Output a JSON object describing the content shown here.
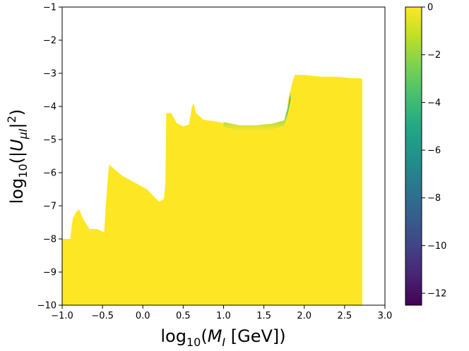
{
  "chart_data": {
    "type": "heatmap",
    "title": "",
    "xlabel": {
      "prefix": "log",
      "sub": "10",
      "open": "(",
      "var": "M",
      "var_sub": "I",
      "rest": " [GeV])"
    },
    "ylabel": {
      "prefix": "log",
      "sub": "10",
      "open": "(|",
      "var": "U",
      "var_sub": "μI",
      "close": "|",
      "sup": "2",
      "end": ")"
    },
    "xlim": [
      -1.0,
      3.0
    ],
    "ylim": [
      -10,
      -1
    ],
    "xticks": [
      -1.0,
      -0.5,
      0.0,
      0.5,
      1.0,
      1.5,
      2.0,
      2.5,
      3.0
    ],
    "xtick_labels": [
      "−1.0",
      "−0.5",
      "0.0",
      "0.5",
      "1.0",
      "1.5",
      "2.0",
      "2.5",
      "3.0"
    ],
    "yticks": [
      -10,
      -9,
      -8,
      -7,
      -6,
      -5,
      -4,
      -3,
      -2,
      -1
    ],
    "ytick_labels": [
      "−10",
      "−9",
      "−8",
      "−7",
      "−6",
      "−5",
      "−4",
      "−3",
      "−2",
      "−1"
    ],
    "colorbar": {
      "colormap": "viridis",
      "range": [
        -12.5,
        0
      ],
      "ticks": [
        0,
        -2,
        -4,
        -6,
        -8,
        -10,
        -12
      ],
      "tick_labels": [
        "0",
        "−2",
        "−4",
        "−6",
        "−8",
        "−10",
        "−12"
      ]
    },
    "filled_region": {
      "value": 0,
      "color": "#fde725",
      "x_range": [
        -1.0,
        2.72
      ],
      "upper_boundary": [
        [
          -1.0,
          -8.0
        ],
        [
          -0.9,
          -8.0
        ],
        [
          -0.87,
          -7.4
        ],
        [
          -0.83,
          -7.2
        ],
        [
          -0.79,
          -7.1
        ],
        [
          -0.74,
          -7.4
        ],
        [
          -0.66,
          -7.7
        ],
        [
          -0.57,
          -7.7
        ],
        [
          -0.48,
          -7.8
        ],
        [
          -0.46,
          -7.0
        ],
        [
          -0.42,
          -5.75
        ],
        [
          -0.35,
          -5.9
        ],
        [
          -0.25,
          -6.1
        ],
        [
          -0.1,
          -6.3
        ],
        [
          0.05,
          -6.5
        ],
        [
          0.15,
          -6.75
        ],
        [
          0.2,
          -6.87
        ],
        [
          0.26,
          -6.8
        ],
        [
          0.28,
          -6.3
        ],
        [
          0.29,
          -4.2
        ],
        [
          0.35,
          -4.2
        ],
        [
          0.42,
          -4.5
        ],
        [
          0.5,
          -4.6
        ],
        [
          0.57,
          -4.55
        ],
        [
          0.61,
          -4.0
        ],
        [
          0.63,
          -3.9
        ],
        [
          0.66,
          -4.2
        ],
        [
          0.75,
          -4.4
        ],
        [
          0.9,
          -4.45
        ],
        [
          1.0,
          -4.5
        ],
        [
          1.2,
          -4.6
        ],
        [
          1.4,
          -4.6
        ],
        [
          1.6,
          -4.55
        ],
        [
          1.75,
          -4.45
        ],
        [
          1.78,
          -4.3
        ],
        [
          1.8,
          -3.8
        ],
        [
          1.85,
          -3.3
        ],
        [
          1.88,
          -3.05
        ],
        [
          2.0,
          -3.05
        ],
        [
          2.2,
          -3.1
        ],
        [
          2.4,
          -3.1
        ],
        [
          2.6,
          -3.15
        ],
        [
          2.7,
          -3.15
        ],
        [
          2.72,
          -3.2
        ]
      ],
      "gradient_band": {
        "x_range": [
          1.0,
          1.83
        ],
        "upper": [
          [
            1.0,
            -4.47
          ],
          [
            1.2,
            -4.57
          ],
          [
            1.4,
            -4.57
          ],
          [
            1.6,
            -4.52
          ],
          [
            1.75,
            -4.42
          ],
          [
            1.8,
            -4.0
          ],
          [
            1.83,
            -3.6
          ]
        ],
        "lower": [
          [
            1.0,
            -4.62
          ],
          [
            1.2,
            -4.74
          ],
          [
            1.4,
            -4.74
          ],
          [
            1.6,
            -4.7
          ],
          [
            1.75,
            -4.58
          ],
          [
            1.8,
            -4.2
          ],
          [
            1.83,
            -3.8
          ]
        ]
      }
    }
  }
}
